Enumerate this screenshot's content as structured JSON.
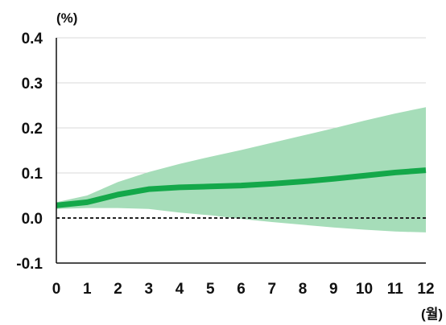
{
  "chart_data": {
    "type": "line",
    "x": [
      0,
      1,
      2,
      3,
      4,
      5,
      6,
      7,
      8,
      9,
      10,
      11,
      12
    ],
    "series": [
      {
        "values": [
          0.028,
          0.035,
          0.052,
          0.064,
          0.068,
          0.07,
          0.072,
          0.076,
          0.081,
          0.087,
          0.094,
          0.101,
          0.106
        ],
        "lower": [
          0.02,
          0.022,
          0.022,
          0.02,
          0.012,
          0.006,
          -0.002,
          -0.009,
          -0.015,
          -0.021,
          -0.026,
          -0.03,
          -0.032
        ],
        "upper": [
          0.035,
          0.05,
          0.08,
          0.102,
          0.12,
          0.136,
          0.151,
          0.167,
          0.183,
          0.199,
          0.216,
          0.232,
          0.246
        ]
      }
    ],
    "baseline": 0,
    "xlim": [
      0,
      12
    ],
    "ylim": [
      -0.1,
      0.4
    ],
    "xticks": [
      "0",
      "1",
      "2",
      "3",
      "4",
      "5",
      "6",
      "7",
      "8",
      "9",
      "10",
      "11",
      "12"
    ],
    "yticks": [
      "-0.1",
      "0.0",
      "0.1",
      "0.2",
      "0.3",
      "0.4"
    ],
    "ylabel": "(%)",
    "xlabel": "(월)",
    "grid": true,
    "colors": {
      "line": "#14a84a",
      "band": "#a6ddb9",
      "grid": "#d9d9d9",
      "zero_line": "#222222",
      "axis": "#111111"
    }
  }
}
